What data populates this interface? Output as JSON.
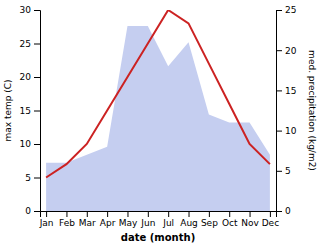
{
  "chart_data": {
    "type": "line",
    "xlabel": "date (month)",
    "ylabel": "max temp (C)",
    "y2label": "med. precipitation (kg/m2)",
    "categories": [
      "Jan",
      "Feb",
      "Mar",
      "Apr",
      "May",
      "Jun",
      "Jul",
      "Aug",
      "Sep",
      "Oct",
      "Nov",
      "Dec"
    ],
    "series": [
      {
        "type": "area",
        "axis": "y2",
        "color": "#c5cef0",
        "values": [
          6,
          6,
          7,
          8,
          23,
          23,
          18,
          21,
          12,
          11,
          11,
          7
        ]
      },
      {
        "type": "line",
        "color": "#cc2222",
        "values": [
          5,
          7,
          10,
          15,
          20,
          25,
          30,
          28,
          22,
          16,
          10,
          7
        ]
      }
    ],
    "ylim": [
      0,
      30
    ],
    "yticks": [
      0,
      5,
      10,
      15,
      20,
      25,
      30
    ],
    "y2lim": [
      0,
      25
    ],
    "y2ticks": [
      0,
      5,
      10,
      15,
      20,
      25
    ],
    "grid": false
  }
}
